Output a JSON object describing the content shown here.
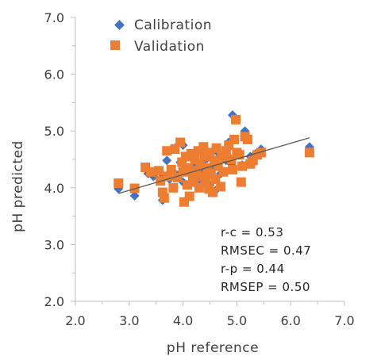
{
  "chart_data": {
    "type": "scatter",
    "xlabel": "pH reference",
    "ylabel": "pH predicted",
    "xlim": [
      2.0,
      7.0
    ],
    "ylim": [
      2.0,
      7.0
    ],
    "x_ticks": [
      "2.0",
      "3.0",
      "4.0",
      "5.0",
      "6.0",
      "7.0"
    ],
    "y_ticks": [
      "2.0",
      "3.0",
      "4.0",
      "5.0",
      "6.0",
      "7.0"
    ],
    "grid": false,
    "legend": {
      "placement": "top-left"
    },
    "series": [
      {
        "name": "Calibration",
        "marker": "diamond",
        "color": "#4472C4",
        "points": [
          [
            2.8,
            3.98
          ],
          [
            3.1,
            3.86
          ],
          [
            3.35,
            4.25
          ],
          [
            3.45,
            4.2
          ],
          [
            3.6,
            4.25
          ],
          [
            3.62,
            3.78
          ],
          [
            3.7,
            4.48
          ],
          [
            3.75,
            4.15
          ],
          [
            3.8,
            4.3
          ],
          [
            3.9,
            4.22
          ],
          [
            3.95,
            4.45
          ],
          [
            4.0,
            4.1
          ],
          [
            4.05,
            4.35
          ],
          [
            4.1,
            4.55
          ],
          [
            4.15,
            4.25
          ],
          [
            4.2,
            4.4
          ],
          [
            4.25,
            4.6
          ],
          [
            4.3,
            4.15
          ],
          [
            4.35,
            4.45
          ],
          [
            4.4,
            4.3
          ],
          [
            4.45,
            4.52
          ],
          [
            4.5,
            4.05
          ],
          [
            4.55,
            4.38
          ],
          [
            4.6,
            3.95
          ],
          [
            4.65,
            4.62
          ],
          [
            4.7,
            4.25
          ],
          [
            4.8,
            4.48
          ],
          [
            4.85,
            4.8
          ],
          [
            4.9,
            4.42
          ],
          [
            4.92,
            5.28
          ],
          [
            5.0,
            4.6
          ],
          [
            5.1,
            4.4
          ],
          [
            5.15,
            5.0
          ],
          [
            5.25,
            4.55
          ],
          [
            5.35,
            4.6
          ],
          [
            5.45,
            4.68
          ],
          [
            6.35,
            4.72
          ],
          [
            4.0,
            4.75
          ],
          [
            4.35,
            4.68
          ],
          [
            3.85,
            4.7
          ]
        ]
      },
      {
        "name": "Validation",
        "marker": "square",
        "color": "#ED7D31",
        "points": [
          [
            2.8,
            4.08
          ],
          [
            3.1,
            3.99
          ],
          [
            3.3,
            4.36
          ],
          [
            3.4,
            4.28
          ],
          [
            3.55,
            4.3
          ],
          [
            3.58,
            4.12
          ],
          [
            3.62,
            3.92
          ],
          [
            3.65,
            3.82
          ],
          [
            3.7,
            4.65
          ],
          [
            3.72,
            4.2
          ],
          [
            3.78,
            4.32
          ],
          [
            3.82,
            4.0
          ],
          [
            3.85,
            4.68
          ],
          [
            3.9,
            4.18
          ],
          [
            3.95,
            4.8
          ],
          [
            3.98,
            4.45
          ],
          [
            4.0,
            4.28
          ],
          [
            4.02,
            3.75
          ],
          [
            4.05,
            4.55
          ],
          [
            4.08,
            4.05
          ],
          [
            4.1,
            4.35
          ],
          [
            4.12,
            3.85
          ],
          [
            4.15,
            4.6
          ],
          [
            4.18,
            4.2
          ],
          [
            4.2,
            4.1
          ],
          [
            4.22,
            4.5
          ],
          [
            4.25,
            4.3
          ],
          [
            4.28,
            4.65
          ],
          [
            4.3,
            4.0
          ],
          [
            4.32,
            4.42
          ],
          [
            4.35,
            4.2
          ],
          [
            4.38,
            4.72
          ],
          [
            4.4,
            4.55
          ],
          [
            4.42,
            4.1
          ],
          [
            4.45,
            4.35
          ],
          [
            4.48,
            3.98
          ],
          [
            4.5,
            4.62
          ],
          [
            4.52,
            4.25
          ],
          [
            4.55,
            3.92
          ],
          [
            4.58,
            4.48
          ],
          [
            4.6,
            4.15
          ],
          [
            4.62,
            4.7
          ],
          [
            4.65,
            4.38
          ],
          [
            4.7,
            4.02
          ],
          [
            4.72,
            4.55
          ],
          [
            4.75,
            4.28
          ],
          [
            4.8,
            4.65
          ],
          [
            4.85,
            4.75
          ],
          [
            4.9,
            4.5
          ],
          [
            4.92,
            4.32
          ],
          [
            4.95,
            4.85
          ],
          [
            4.98,
            5.2
          ],
          [
            5.0,
            4.62
          ],
          [
            5.05,
            4.58
          ],
          [
            5.08,
            4.1
          ],
          [
            5.1,
            4.38
          ],
          [
            5.15,
            4.9
          ],
          [
            5.2,
            4.85
          ],
          [
            5.25,
            4.42
          ],
          [
            5.3,
            4.48
          ],
          [
            5.38,
            4.58
          ],
          [
            5.45,
            4.62
          ],
          [
            6.35,
            4.62
          ]
        ]
      }
    ],
    "trendline": {
      "x": [
        2.8,
        6.35
      ],
      "y": [
        3.9,
        4.88
      ],
      "color": "#595959"
    },
    "annotations": [
      "r-c = 0.53",
      "RMSEC = 0.47",
      "r-p = 0.44",
      "RMSEP = 0.50"
    ]
  }
}
